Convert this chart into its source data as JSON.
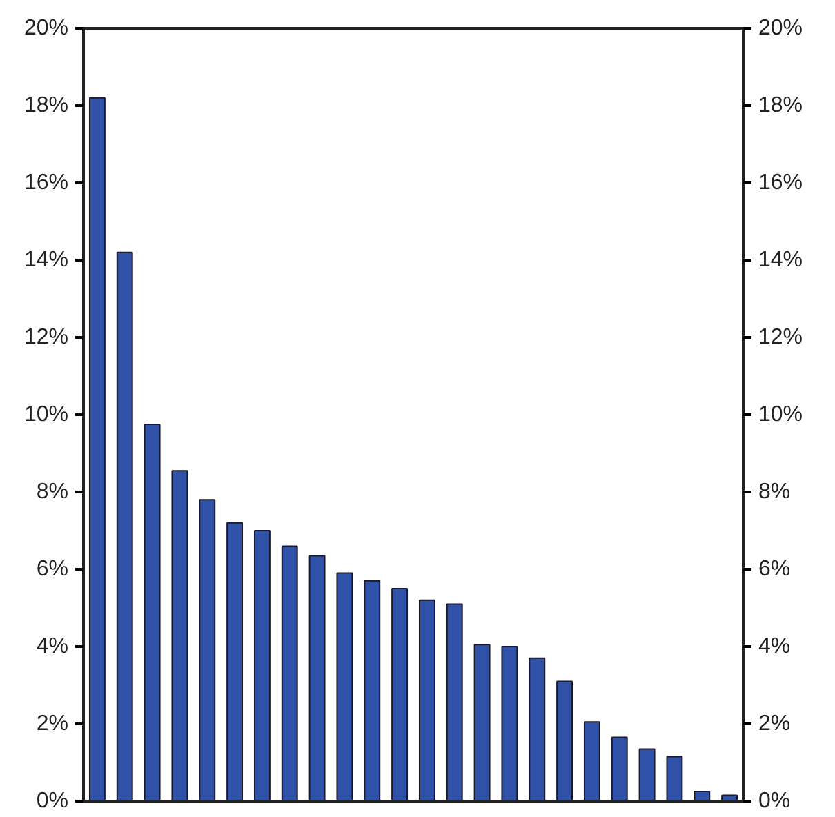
{
  "chart_data": {
    "type": "bar",
    "categories": [
      null,
      null,
      null,
      null,
      null,
      null,
      null,
      null,
      null,
      null,
      null,
      null,
      null,
      null,
      null,
      null,
      null,
      null,
      null,
      null,
      null,
      null,
      null,
      null
    ],
    "values": [
      18.2,
      14.2,
      9.75,
      8.55,
      7.8,
      7.2,
      7.0,
      6.6,
      6.35,
      5.9,
      5.7,
      5.5,
      5.2,
      5.1,
      4.05,
      4.0,
      3.7,
      3.1,
      2.05,
      1.65,
      1.35,
      1.15,
      0.25,
      0.15
    ],
    "color": "#2f52a8",
    "ylim": [
      0,
      20
    ],
    "yticks": [
      {
        "value": 0,
        "label": "0%"
      },
      {
        "value": 2,
        "label": "2%"
      },
      {
        "value": 4,
        "label": "4%"
      },
      {
        "value": 6,
        "label": "6%"
      },
      {
        "value": 8,
        "label": "8%"
      },
      {
        "value": 10,
        "label": "10%"
      },
      {
        "value": 12,
        "label": "12%"
      },
      {
        "value": 14,
        "label": "14%"
      },
      {
        "value": 16,
        "label": "16%"
      },
      {
        "value": 18,
        "label": "18%"
      },
      {
        "value": 20,
        "label": "20%"
      }
    ],
    "y2lim": [
      0,
      20
    ],
    "y2ticks": [
      {
        "value": 0,
        "label": "0%"
      },
      {
        "value": 2,
        "label": "2%"
      },
      {
        "value": 4,
        "label": "4%"
      },
      {
        "value": 6,
        "label": "6%"
      },
      {
        "value": 8,
        "label": "8%"
      },
      {
        "value": 10,
        "label": "10%"
      },
      {
        "value": 12,
        "label": "12%"
      },
      {
        "value": 14,
        "label": "14%"
      },
      {
        "value": 16,
        "label": "16%"
      },
      {
        "value": 18,
        "label": "18%"
      },
      {
        "value": 20,
        "label": "20%"
      }
    ],
    "grid": false
  }
}
